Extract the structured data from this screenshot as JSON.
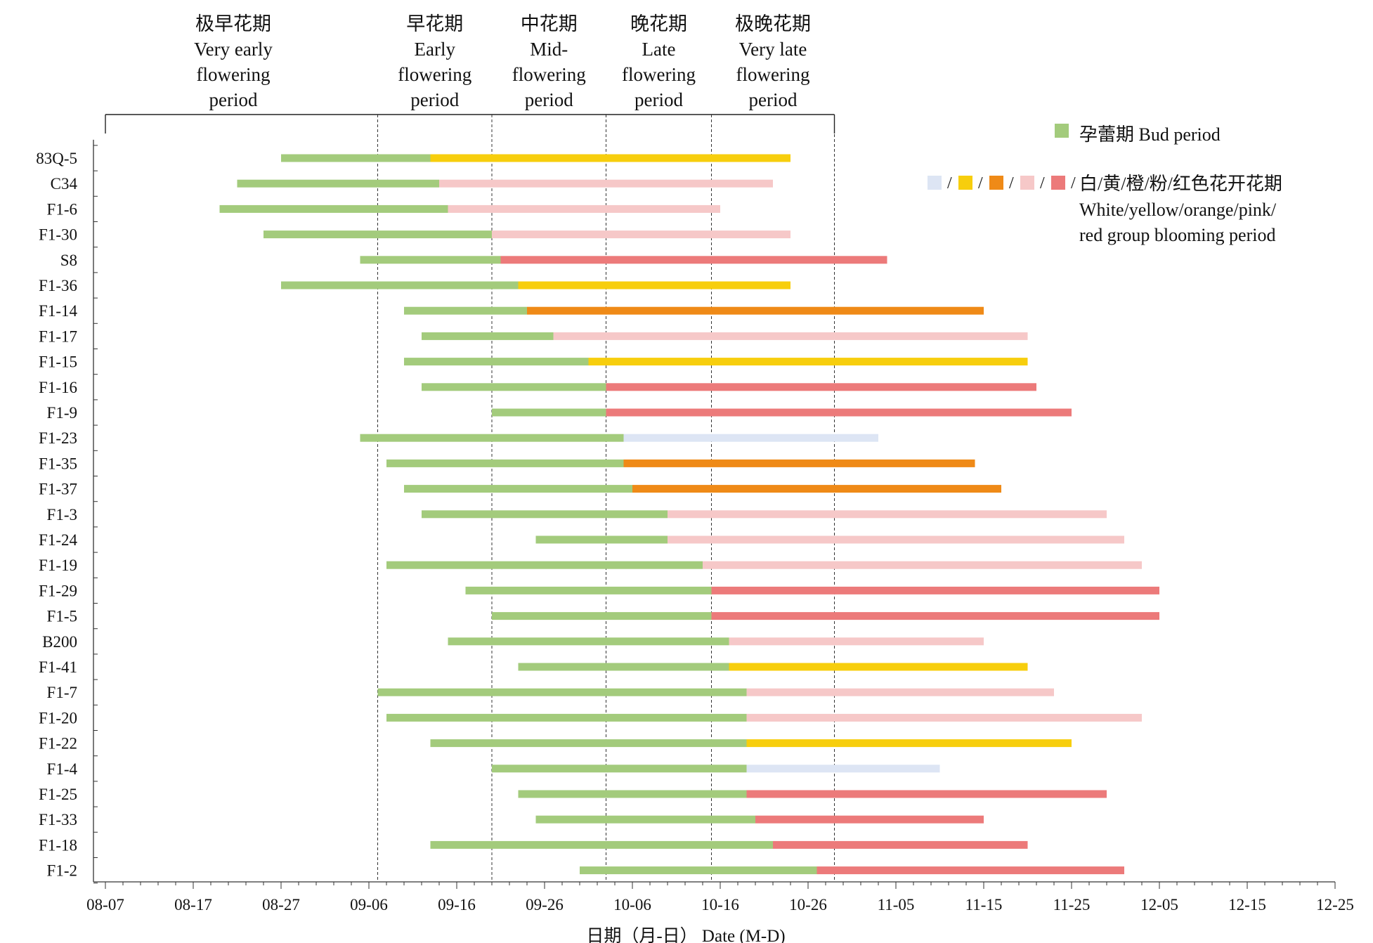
{
  "chart_data": {
    "type": "bar",
    "xlabel": "日期（月-日） Date (M-D)",
    "ylabel": "",
    "x_range": [
      "08-07",
      "12-25"
    ],
    "x_ticks": [
      "08-07",
      "08-17",
      "08-27",
      "09-06",
      "09-16",
      "09-26",
      "10-06",
      "10-16",
      "10-26",
      "11-05",
      "11-15",
      "11-25",
      "12-05",
      "12-15",
      "12-25"
    ],
    "grid": false,
    "legend_position": "top-right",
    "legend": {
      "bud_label": "孕蕾期 Bud period",
      "sep": "/",
      "bloom_label_zh": "白/黄/橙/粉/红色花开花期",
      "bloom_label_en_1": "White/yellow/orange/pink/",
      "bloom_label_en_2": "red group blooming period"
    },
    "periods": [
      {
        "zh": "极早花期",
        "en": [
          "Very early",
          "flowering",
          "period"
        ],
        "start": "08-07",
        "end": "09-07"
      },
      {
        "zh": "早花期",
        "en": [
          "Early",
          "flowering",
          "period"
        ],
        "start": "09-07",
        "end": "09-20"
      },
      {
        "zh": "中花期",
        "en": [
          "Mid-",
          "flowering",
          "period"
        ],
        "start": "09-20",
        "end": "10-03"
      },
      {
        "zh": "晚花期",
        "en": [
          "Late",
          "flowering",
          "period"
        ],
        "start": "10-03",
        "end": "10-15"
      },
      {
        "zh": "极晚花期",
        "en": [
          "Very late",
          "flowering",
          "period"
        ],
        "start": "10-15",
        "end": "10-29"
      }
    ],
    "colors": {
      "bud": "#a3cb7c",
      "white": "#dde5f4",
      "yellow": "#f7ce0d",
      "orange": "#ef8a17",
      "pink": "#f6c8c8",
      "red": "#ec7a7a"
    },
    "series": [
      {
        "name": "83Q-5",
        "bud_start": "08-27",
        "bloom_start": "09-13",
        "bloom_end": "10-24",
        "color": "yellow"
      },
      {
        "name": "C34",
        "bud_start": "08-22",
        "bloom_start": "09-14",
        "bloom_end": "10-22",
        "color": "pink"
      },
      {
        "name": "F1-6",
        "bud_start": "08-20",
        "bloom_start": "09-15",
        "bloom_end": "10-16",
        "color": "pink"
      },
      {
        "name": "F1-30",
        "bud_start": "08-25",
        "bloom_start": "09-20",
        "bloom_end": "10-24",
        "color": "pink"
      },
      {
        "name": "S8",
        "bud_start": "09-05",
        "bloom_start": "09-21",
        "bloom_end": "11-04",
        "color": "red"
      },
      {
        "name": "F1-36",
        "bud_start": "08-27",
        "bloom_start": "09-23",
        "bloom_end": "10-24",
        "color": "yellow"
      },
      {
        "name": "F1-14",
        "bud_start": "09-10",
        "bloom_start": "09-24",
        "bloom_end": "11-15",
        "color": "orange"
      },
      {
        "name": "F1-17",
        "bud_start": "09-12",
        "bloom_start": "09-27",
        "bloom_end": "11-20",
        "color": "pink"
      },
      {
        "name": "F1-15",
        "bud_start": "09-10",
        "bloom_start": "10-01",
        "bloom_end": "11-20",
        "color": "yellow"
      },
      {
        "name": "F1-16",
        "bud_start": "09-12",
        "bloom_start": "10-03",
        "bloom_end": "11-21",
        "color": "red"
      },
      {
        "name": "F1-9",
        "bud_start": "09-20",
        "bloom_start": "10-03",
        "bloom_end": "11-25",
        "color": "red"
      },
      {
        "name": "F1-23",
        "bud_start": "09-05",
        "bloom_start": "10-05",
        "bloom_end": "11-03",
        "color": "white"
      },
      {
        "name": "F1-35",
        "bud_start": "09-08",
        "bloom_start": "10-05",
        "bloom_end": "11-14",
        "color": "orange"
      },
      {
        "name": "F1-37",
        "bud_start": "09-10",
        "bloom_start": "10-06",
        "bloom_end": "11-17",
        "color": "orange"
      },
      {
        "name": "F1-3",
        "bud_start": "09-12",
        "bloom_start": "10-10",
        "bloom_end": "11-29",
        "color": "pink"
      },
      {
        "name": "F1-24",
        "bud_start": "09-25",
        "bloom_start": "10-10",
        "bloom_end": "12-01",
        "color": "pink"
      },
      {
        "name": "F1-19",
        "bud_start": "09-08",
        "bloom_start": "10-14",
        "bloom_end": "12-03",
        "color": "pink"
      },
      {
        "name": "F1-29",
        "bud_start": "09-17",
        "bloom_start": "10-15",
        "bloom_end": "12-05",
        "color": "red"
      },
      {
        "name": "F1-5",
        "bud_start": "09-20",
        "bloom_start": "10-15",
        "bloom_end": "12-05",
        "color": "red"
      },
      {
        "name": "B200",
        "bud_start": "09-15",
        "bloom_start": "10-17",
        "bloom_end": "11-15",
        "color": "pink"
      },
      {
        "name": "F1-41",
        "bud_start": "09-23",
        "bloom_start": "10-17",
        "bloom_end": "11-20",
        "color": "yellow"
      },
      {
        "name": "F1-7",
        "bud_start": "09-07",
        "bloom_start": "10-19",
        "bloom_end": "11-23",
        "color": "pink"
      },
      {
        "name": "F1-20",
        "bud_start": "09-08",
        "bloom_start": "10-19",
        "bloom_end": "12-03",
        "color": "pink"
      },
      {
        "name": "F1-22",
        "bud_start": "09-13",
        "bloom_start": "10-19",
        "bloom_end": "11-25",
        "color": "yellow"
      },
      {
        "name": "F1-4",
        "bud_start": "09-20",
        "bloom_start": "10-19",
        "bloom_end": "11-10",
        "color": "white"
      },
      {
        "name": "F1-25",
        "bud_start": "09-23",
        "bloom_start": "10-19",
        "bloom_end": "11-29",
        "color": "red"
      },
      {
        "name": "F1-33",
        "bud_start": "09-25",
        "bloom_start": "10-20",
        "bloom_end": "11-15",
        "color": "red"
      },
      {
        "name": "F1-18",
        "bud_start": "09-13",
        "bloom_start": "10-22",
        "bloom_end": "11-20",
        "color": "red"
      },
      {
        "name": "F1-2",
        "bud_start": "09-30",
        "bloom_start": "10-27",
        "bloom_end": "12-01",
        "color": "red"
      }
    ]
  }
}
